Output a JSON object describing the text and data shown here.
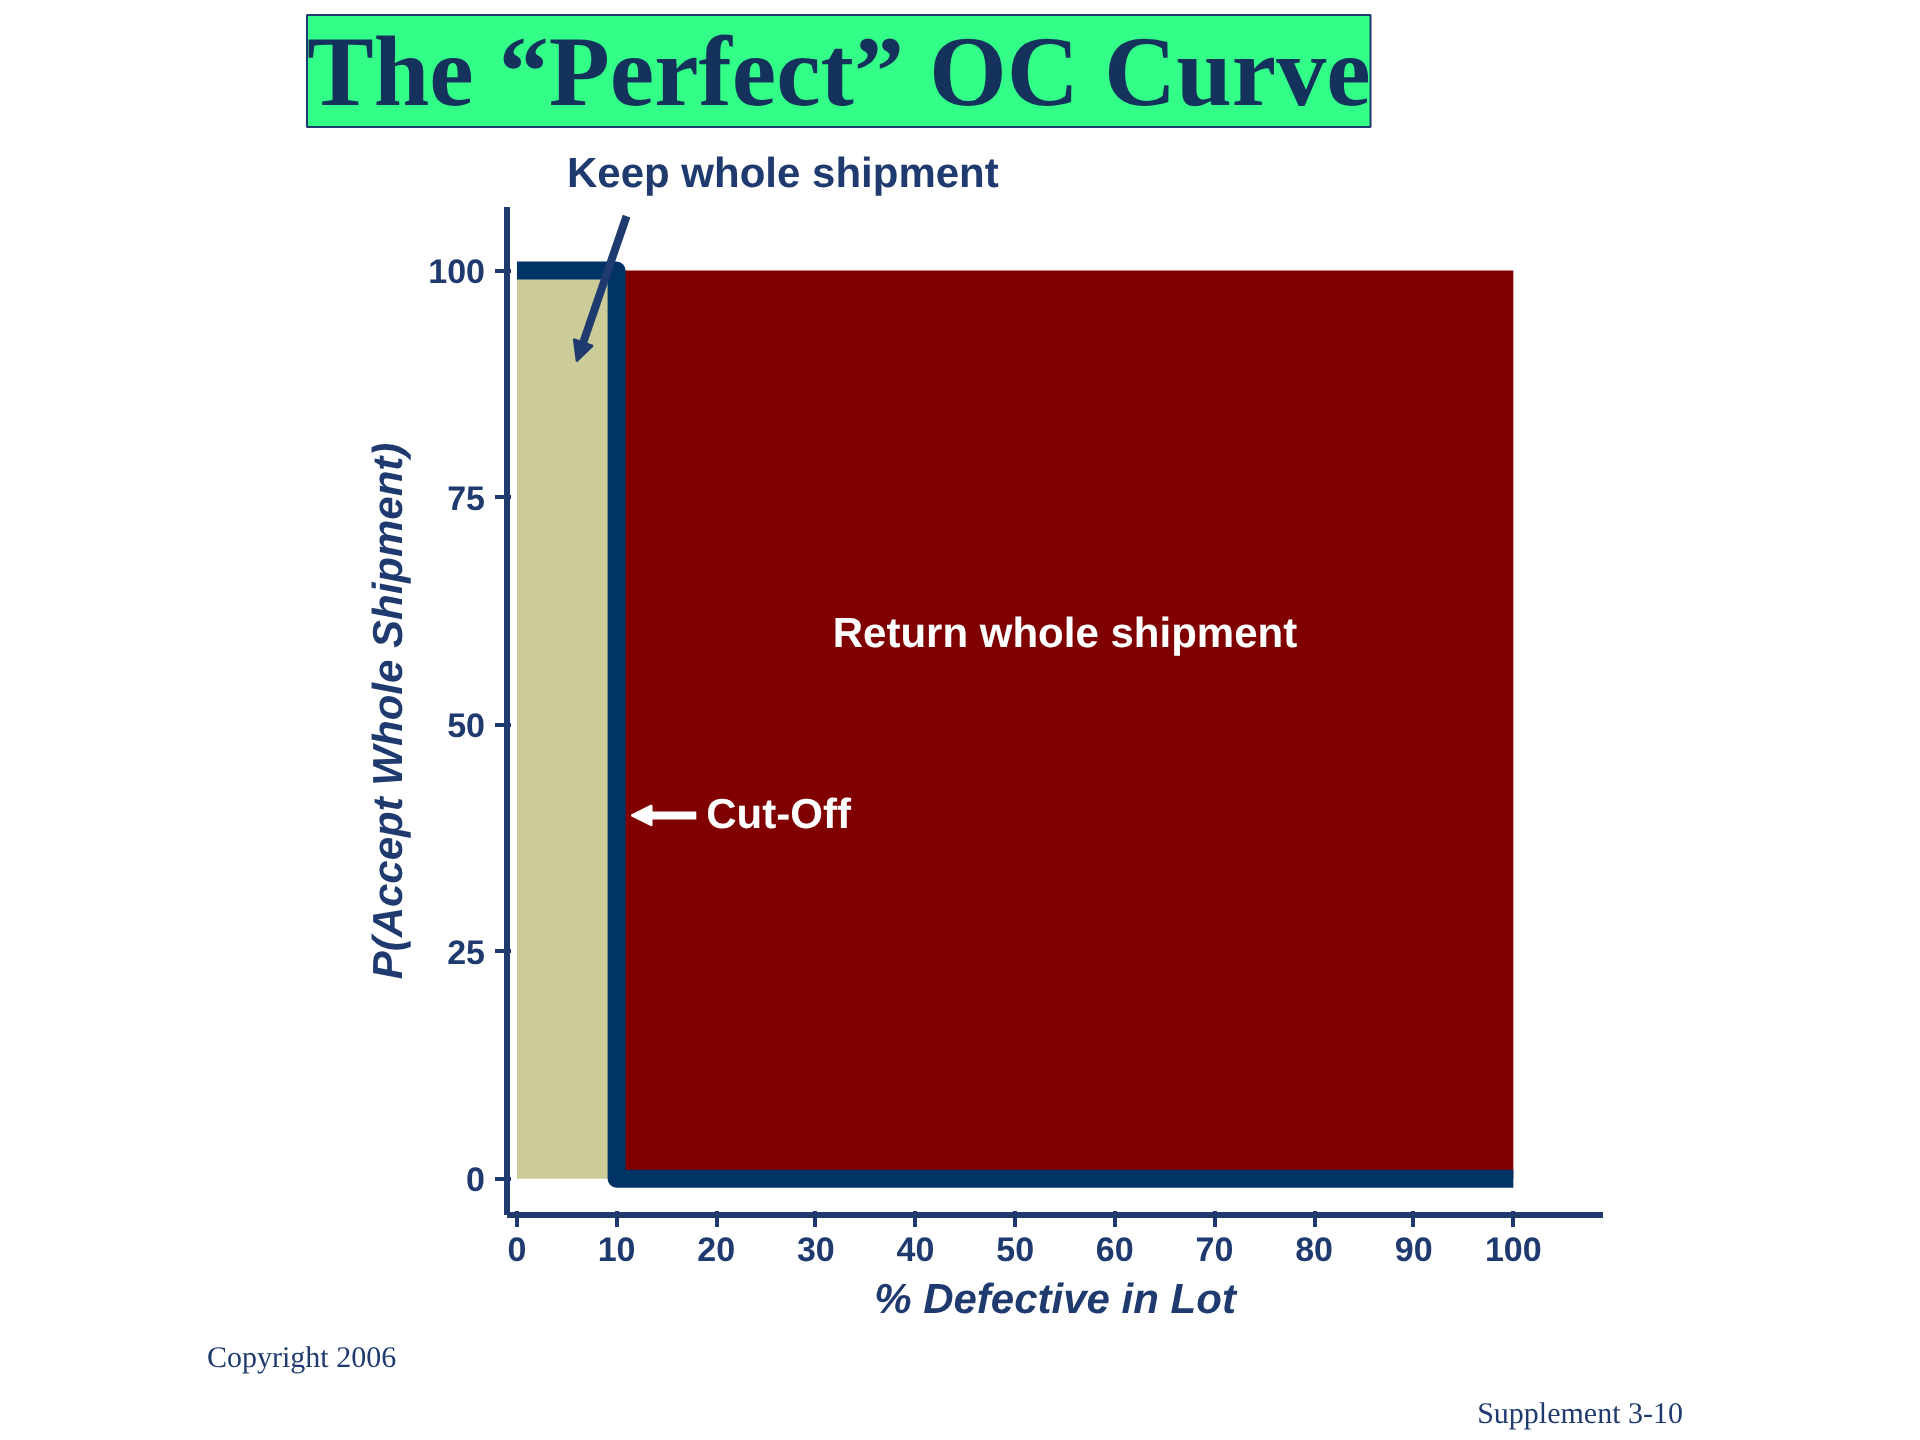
{
  "chart_data": {
    "type": "line",
    "title": "The “Perfect” OC Curve",
    "xlabel": "% Defective in Lot",
    "ylabel": "P(Accept Whole Shipment)",
    "x": [
      0,
      10,
      10,
      100
    ],
    "series": [
      {
        "color": "#003366",
        "values": [
          100,
          100,
          0,
          0
        ]
      }
    ],
    "xlim": [
      -1,
      109
    ],
    "ylim": [
      -4,
      107
    ],
    "xticks": [
      0,
      10,
      20,
      30,
      40,
      50,
      60,
      70,
      80,
      90,
      100
    ],
    "yticks": [
      0,
      25,
      50,
      75,
      100
    ],
    "bands": [
      {
        "axis": "x",
        "from": 0,
        "to": 10,
        "label": "Keep whole shipment",
        "color": "#cccc99"
      },
      {
        "axis": "x",
        "from": 10,
        "to": 100,
        "label": "Return whole shipment",
        "color": "#800000"
      }
    ],
    "annotations": [
      {
        "text": "Cut-Off",
        "x": 10,
        "y": 40
      },
      "Copyright 2006",
      "Supplement 3-10"
    ],
    "grid": false,
    "marker": "none",
    "line_style": "solid"
  }
}
